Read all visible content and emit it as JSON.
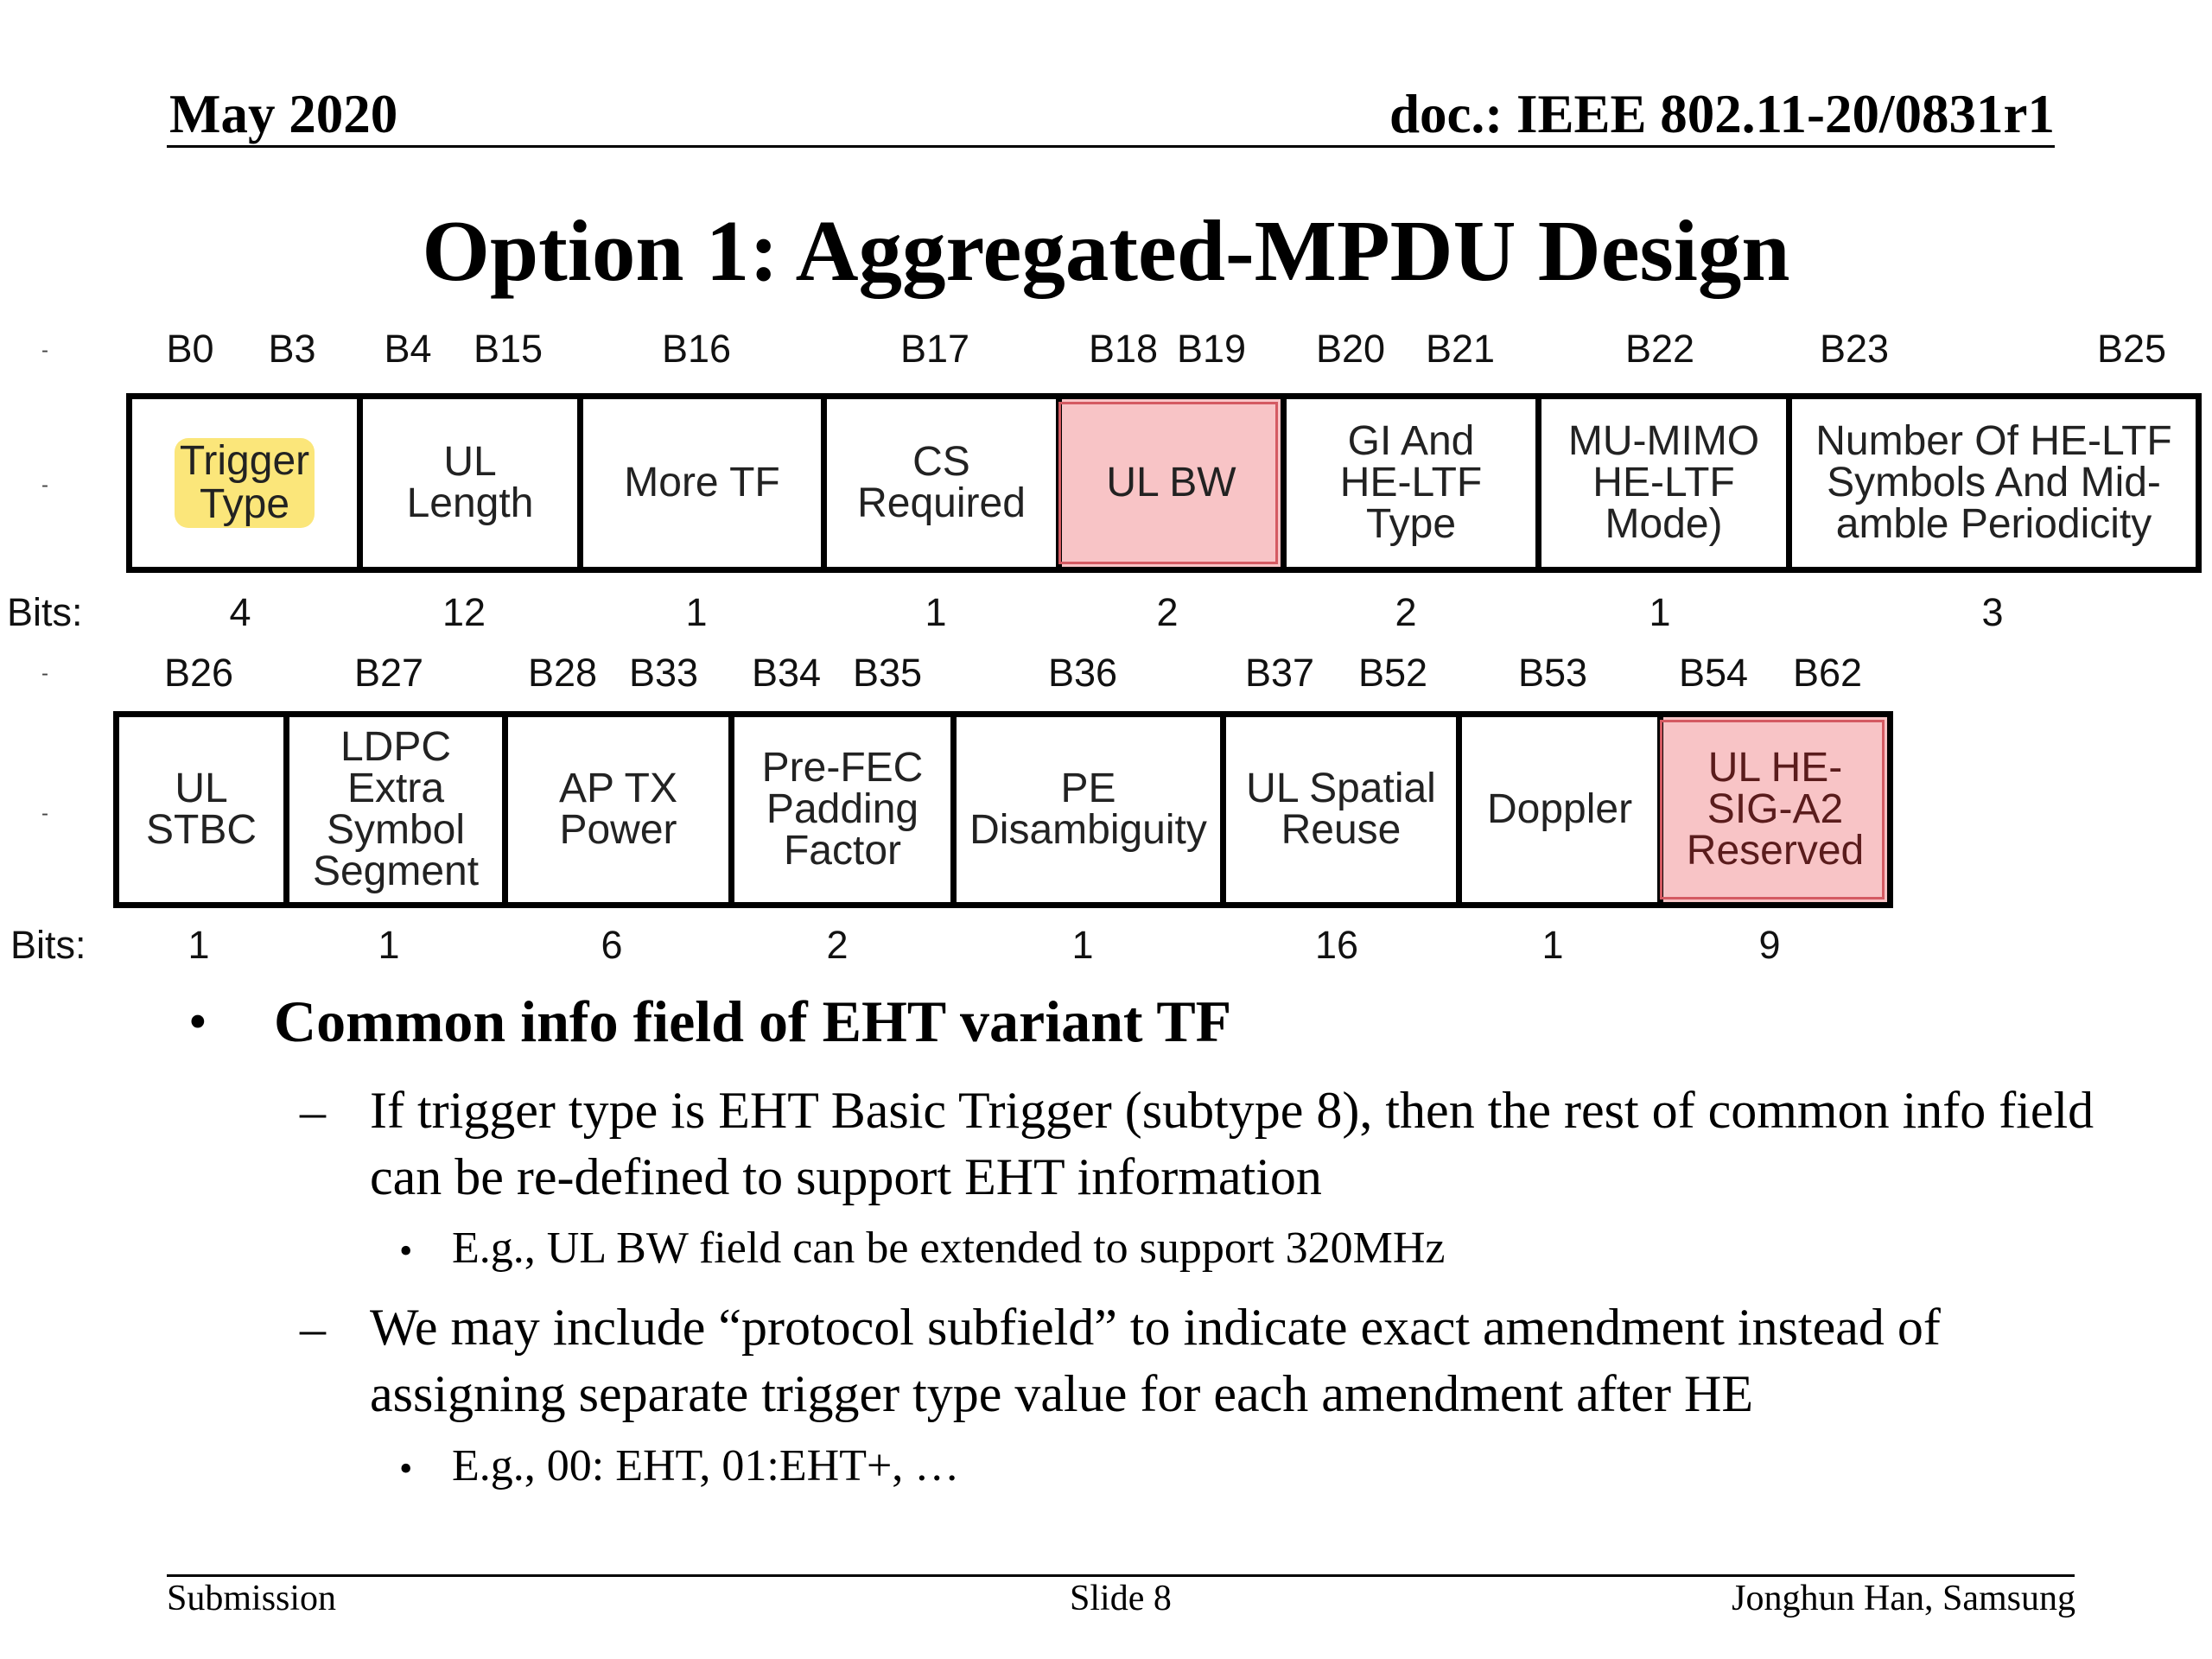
{
  "header": {
    "date": "May 2020",
    "doc": "doc.: IEEE 802.11-20/0831r1"
  },
  "title": "Option 1: Aggregated-MPDU Design",
  "row1": {
    "bits_word": "Bits:",
    "bit_labels": [
      "B0",
      "B3",
      "B4",
      "B15",
      "B16",
      "B17",
      "B18",
      "B19",
      "B20",
      "B21",
      "B22",
      "B23",
      "B25"
    ],
    "fields": [
      {
        "name": "Trigger Type",
        "lines": [
          "Trigger",
          "Type"
        ],
        "bits": "4",
        "highlight": "yellow"
      },
      {
        "name": "UL Length",
        "lines": [
          "UL",
          "Length"
        ],
        "bits": "12"
      },
      {
        "name": "More TF",
        "lines": [
          "More TF"
        ],
        "bits": "1"
      },
      {
        "name": "CS Required",
        "lines": [
          "CS",
          "Required"
        ],
        "bits": "1"
      },
      {
        "name": "UL BW",
        "lines": [
          "UL BW"
        ],
        "bits": "2",
        "highlight": "red"
      },
      {
        "name": "GI And HE-LTF Type",
        "lines": [
          "GI And",
          "HE-LTF",
          "Type"
        ],
        "bits": "2"
      },
      {
        "name": "MU-MIMO HE-LTF Mode)",
        "lines": [
          "MU-MIMO",
          "HE-LTF",
          "Mode)"
        ],
        "bits": "1"
      },
      {
        "name": "Number Of HE-LTF Symbols And Midamble Periodicity",
        "lines": [
          "Number Of HE-LTF",
          "Symbols And Mid-",
          "amble Periodicity"
        ],
        "bits": "3"
      }
    ]
  },
  "row2": {
    "bits_word": "Bits:",
    "bit_labels": [
      "B26",
      "B27",
      "B28",
      "B33",
      "B34",
      "B35",
      "B36",
      "B37",
      "B52",
      "B53",
      "B54",
      "B62"
    ],
    "fields": [
      {
        "name": "UL STBC",
        "lines": [
          "UL",
          "STBC"
        ],
        "bits": "1"
      },
      {
        "name": "LDPC Extra Symbol Segment",
        "lines": [
          "LDPC",
          "Extra",
          "Symbol",
          "Segment"
        ],
        "bits": "1"
      },
      {
        "name": "AP TX Power",
        "lines": [
          "AP TX",
          "Power"
        ],
        "bits": "6"
      },
      {
        "name": "Pre-FEC Padding Factor",
        "lines": [
          "Pre-FEC",
          "Padding",
          "Factor"
        ],
        "bits": "2"
      },
      {
        "name": "PE Disambiguity",
        "lines": [
          "PE",
          "Disambiguity"
        ],
        "bits": "1"
      },
      {
        "name": "UL Spatial Reuse",
        "lines": [
          "UL Spatial",
          "Reuse"
        ],
        "bits": "16"
      },
      {
        "name": "Doppler",
        "lines": [
          "Doppler"
        ],
        "bits": "1"
      },
      {
        "name": "UL HE-SIG-A2 Reserved",
        "lines": [
          "UL HE-",
          "SIG-A2",
          "Reserved"
        ],
        "bits": "9",
        "highlight": "red"
      }
    ]
  },
  "bullets": {
    "main": "Common info field of EHT variant TF",
    "sub1": "If trigger type is EHT Basic Trigger (subtype 8), then the rest of common info field can be re-defined to support EHT information",
    "sub1_example": "E.g., UL BW field can be extended to support 320MHz",
    "sub2": "We may include “protocol subfield” to indicate exact amendment instead of assigning separate trigger type value for each amendment after HE",
    "sub2_example": "E.g., 00: EHT, 01:EHT+, …"
  },
  "footer": {
    "left": "Submission",
    "center": "Slide 8",
    "right": "Jonghun Han, Samsung"
  },
  "colors": {
    "highlight_red": "#f8c4c6",
    "highlight_yellow": "#fbe67a"
  }
}
